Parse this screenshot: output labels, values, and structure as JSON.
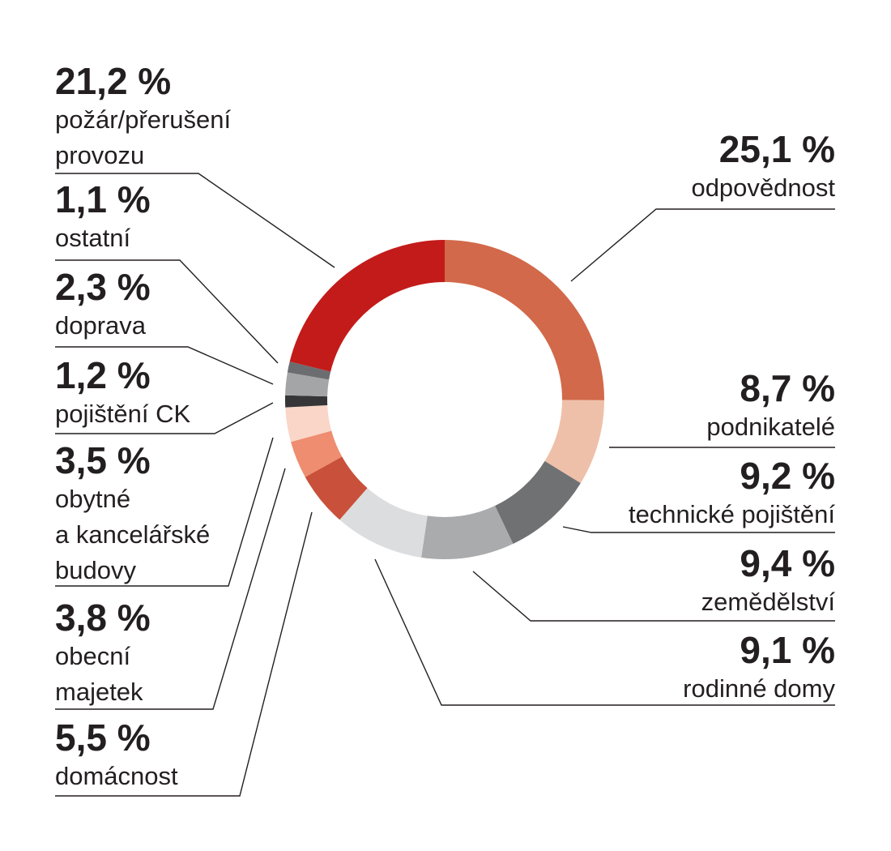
{
  "chart_data": {
    "type": "pie",
    "variant": "donut",
    "start_angle_deg": 0,
    "direction": "clockwise",
    "slices": [
      {
        "value_label": "25,1 %",
        "value": 25.1,
        "lines": [
          "odpovědnost"
        ],
        "color": "#d2694a"
      },
      {
        "value_label": "8,7 %",
        "value": 8.7,
        "lines": [
          "podnikatelé"
        ],
        "color": "#efc0a9"
      },
      {
        "value_label": "9,2 %",
        "value": 9.2,
        "lines": [
          "technické pojištění"
        ],
        "color": "#707173"
      },
      {
        "value_label": "9,4 %",
        "value": 9.4,
        "lines": [
          "zemědělství"
        ],
        "color": "#aaabad"
      },
      {
        "value_label": "9,1 %",
        "value": 9.1,
        "lines": [
          "rodinné domy"
        ],
        "color": "#dcdddf"
      },
      {
        "value_label": "5,5 %",
        "value": 5.5,
        "lines": [
          "domácnost"
        ],
        "color": "#c9503a"
      },
      {
        "value_label": "3,8 %",
        "value": 3.8,
        "lines": [
          "obecní",
          "majetek"
        ],
        "color": "#ef8d70"
      },
      {
        "value_label": "3,5 %",
        "value": 3.5,
        "lines": [
          "obytné",
          "a kancelářské",
          "budovy"
        ],
        "color": "#f9d6c8"
      },
      {
        "value_label": "1,2 %",
        "value": 1.2,
        "lines": [
          "pojištění CK"
        ],
        "color": "#363638"
      },
      {
        "value_label": "2,3 %",
        "value": 2.3,
        "lines": [
          "doprava"
        ],
        "color": "#a4a5a7"
      },
      {
        "value_label": "1,1 %",
        "value": 1.1,
        "lines": [
          "ostatní"
        ],
        "color": "#6c6d70"
      },
      {
        "value_label": "21,2 %",
        "value": 21.2,
        "lines": [
          "požár/přerušení",
          "provozu"
        ],
        "color": "#c31b1a"
      }
    ]
  }
}
